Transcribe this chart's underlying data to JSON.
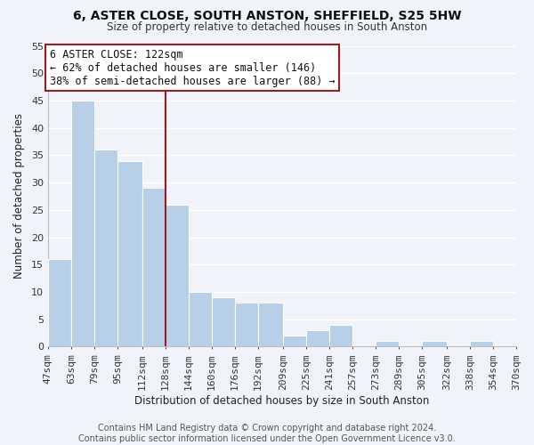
{
  "title": "6, ASTER CLOSE, SOUTH ANSTON, SHEFFIELD, S25 5HW",
  "subtitle": "Size of property relative to detached houses in South Anston",
  "xlabel": "Distribution of detached houses by size in South Anston",
  "ylabel": "Number of detached properties",
  "footer_line1": "Contains HM Land Registry data © Crown copyright and database right 2024.",
  "footer_line2": "Contains public sector information licensed under the Open Government Licence v3.0.",
  "bin_labels": [
    "47sqm",
    "63sqm",
    "79sqm",
    "95sqm",
    "112sqm",
    "128sqm",
    "144sqm",
    "160sqm",
    "176sqm",
    "192sqm",
    "209sqm",
    "225sqm",
    "241sqm",
    "257sqm",
    "273sqm",
    "289sqm",
    "305sqm",
    "322sqm",
    "338sqm",
    "354sqm",
    "370sqm"
  ],
  "bar_heights": [
    16,
    45,
    36,
    34,
    29,
    26,
    10,
    9,
    8,
    8,
    2,
    3,
    4,
    0,
    1,
    0,
    1,
    0,
    1,
    0,
    0
  ],
  "bar_color": "#b8cfe8",
  "bar_edge_color": "#ffffff",
  "background_color": "#f0f4fa",
  "grid_color": "#ffffff",
  "marker_line_color": "#9b1c1c",
  "annotation_line1": "6 ASTER CLOSE: 122sqm",
  "annotation_line2": "← 62% of detached houses are smaller (146)",
  "annotation_line3": "38% of semi-detached houses are larger (88) →",
  "annotation_box_color": "#ffffff",
  "annotation_box_edge_color": "#9b1c1c",
  "ylim": [
    0,
    55
  ],
  "yticks": [
    0,
    5,
    10,
    15,
    20,
    25,
    30,
    35,
    40,
    45,
    50,
    55
  ],
  "bin_edges": [
    47,
    63,
    79,
    95,
    112,
    128,
    144,
    160,
    176,
    192,
    209,
    225,
    241,
    257,
    273,
    289,
    305,
    322,
    338,
    354,
    370
  ],
  "marker_bin_index": 4,
  "annotation_fontsize": 8.5,
  "title_fontsize": 10,
  "subtitle_fontsize": 8.5,
  "axis_label_fontsize": 8.5,
  "tick_fontsize": 8,
  "footer_fontsize": 7
}
